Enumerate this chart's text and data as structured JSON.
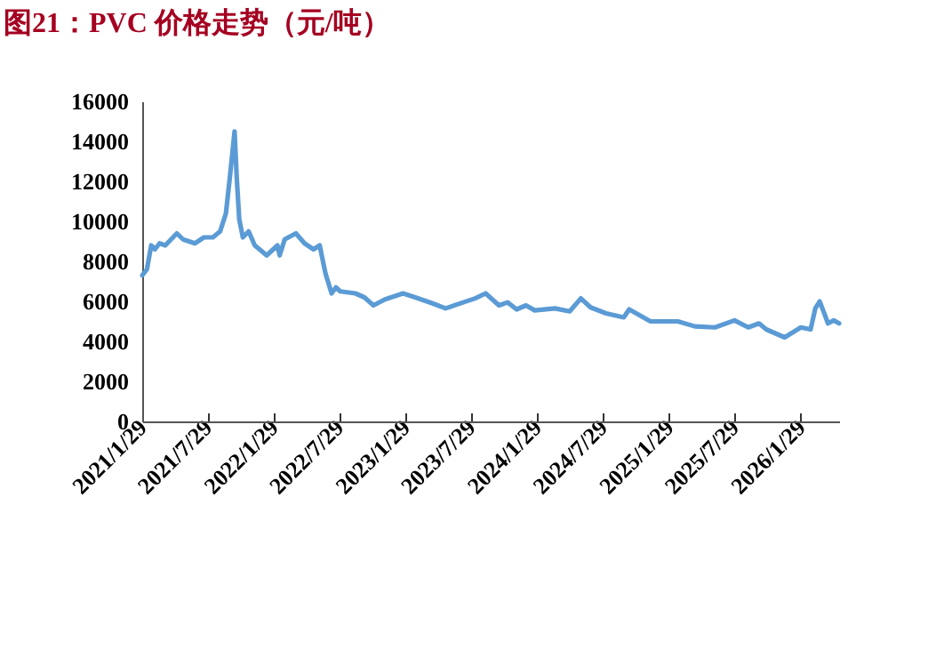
{
  "chart_data": {
    "type": "line",
    "title": "图21：PVC 价格走势（元/吨）",
    "x": [
      "2021-01-29",
      "2021-02-11",
      "2021-02-23",
      "2021-03-05",
      "2021-03-18",
      "2021-04-03",
      "2021-05-05",
      "2021-05-22",
      "2021-06-24",
      "2021-07-19",
      "2021-08-13",
      "2021-09-02",
      "2021-09-18",
      "2021-09-29",
      "2021-10-12",
      "2021-10-18",
      "2021-10-25",
      "2021-11-04",
      "2021-11-20",
      "2021-12-07",
      "2022-01-09",
      "2022-02-08",
      "2022-02-14",
      "2022-02-28",
      "2022-03-31",
      "2022-04-24",
      "2022-05-19",
      "2022-06-05",
      "2022-06-21",
      "2022-07-08",
      "2022-07-20",
      "2022-08-01",
      "2022-09-12",
      "2022-10-07",
      "2022-11-01",
      "2022-12-03",
      "2023-01-22",
      "2023-02-25",
      "2023-04-14",
      "2023-05-20",
      "2023-07-08",
      "2023-08-10",
      "2023-09-08",
      "2023-10-15",
      "2023-11-08",
      "2023-12-03",
      "2023-12-29",
      "2024-01-22",
      "2024-03-18",
      "2024-04-28",
      "2024-05-29",
      "2024-06-25",
      "2024-08-07",
      "2024-09-25",
      "2024-10-10",
      "2024-12-08",
      "2025-02-22",
      "2025-04-10",
      "2025-06-05",
      "2025-07-29",
      "2025-09-05",
      "2025-10-05",
      "2025-10-25",
      "2025-12-15",
      "2026-01-29",
      "2026-02-25",
      "2026-03-10",
      "2026-03-22",
      "2026-04-05",
      "2026-04-14",
      "2026-04-30",
      "2026-05-15"
    ],
    "series": [
      {
        "color": "#5b9bd5",
        "values": [
          7300,
          7600,
          8800,
          8600,
          8900,
          8800,
          9400,
          9100,
          8900,
          9200,
          9200,
          9500,
          10400,
          12200,
          14500,
          12200,
          10100,
          9200,
          9500,
          8800,
          8300,
          8800,
          8300,
          9100,
          9400,
          8900,
          8600,
          8800,
          7400,
          6400,
          6700,
          6500,
          6400,
          6200,
          5800,
          6100,
          6400,
          6200,
          5900,
          5650,
          5950,
          6150,
          6400,
          5800,
          5950,
          5600,
          5800,
          5550,
          5650,
          5500,
          6150,
          5700,
          5400,
          5200,
          5600,
          5000,
          5000,
          4750,
          4700,
          5050,
          4700,
          4900,
          4600,
          4200,
          4700,
          4600,
          5650,
          6000,
          5350,
          4900,
          5050,
          4900
        ]
      }
    ],
    "xlim": [
      "2021-01-29",
      "2026-05-15"
    ],
    "xticks": [
      {
        "value": "2021-01-29",
        "label": "2021/1/29"
      },
      {
        "value": "2021-07-29",
        "label": "2021/7/29"
      },
      {
        "value": "2022-01-29",
        "label": "2022/1/29"
      },
      {
        "value": "2022-07-29",
        "label": "2022/7/29"
      },
      {
        "value": "2023-01-29",
        "label": "2023/1/29"
      },
      {
        "value": "2023-07-29",
        "label": "2023/7/29"
      },
      {
        "value": "2024-01-29",
        "label": "2024/1/29"
      },
      {
        "value": "2024-07-29",
        "label": "2024/7/29"
      },
      {
        "value": "2025-01-29",
        "label": "2025/1/29"
      },
      {
        "value": "2025-07-29",
        "label": "2025/7/29"
      },
      {
        "value": "2026-01-29",
        "label": "2026/1/29"
      }
    ],
    "ylim": [
      0,
      16000
    ],
    "yticks": [
      0,
      2000,
      4000,
      6000,
      8000,
      10000,
      12000,
      14000,
      16000
    ],
    "grid": false,
    "marker": "none",
    "line_style": "solid"
  }
}
